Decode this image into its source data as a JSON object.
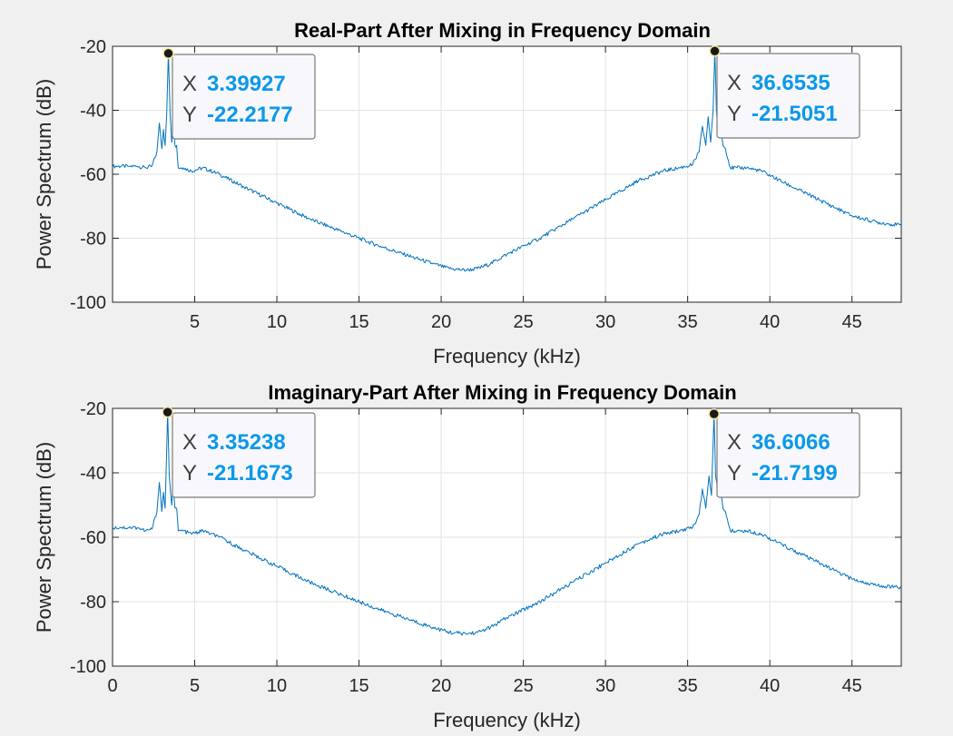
{
  "figure": {
    "background": "#f0f0f0"
  },
  "chart_data": [
    {
      "type": "line",
      "title": "Real-Part After Mixing in Frequency Domain",
      "xlabel": "Frequency (kHz)",
      "ylabel": "Power Spectrum (dB)",
      "xlim": [
        0,
        48
      ],
      "ylim": [
        -100,
        -20
      ],
      "xticks": [
        5,
        10,
        15,
        20,
        25,
        30,
        35,
        40,
        45
      ],
      "xtick_labels": [
        "5",
        "10",
        "15",
        "20",
        "25",
        "30",
        "35",
        "40",
        "45"
      ],
      "yticks": [
        -100,
        -80,
        -60,
        -40,
        -20
      ],
      "ytick_labels": [
        "-100",
        "-80",
        "-60",
        "-40",
        "-20"
      ],
      "grid": true,
      "line_color": "#0072bd",
      "series": [
        {
          "x": [
            0,
            0.5,
            1,
            1.5,
            2,
            2.4,
            2.7,
            2.85,
            3.0,
            3.1,
            3.2,
            3.3,
            3.39927,
            3.5,
            3.6,
            3.7,
            3.8,
            3.9,
            4.0,
            4.3,
            4.8,
            5.5,
            6.5,
            8,
            10,
            12,
            14,
            16,
            18,
            19.5,
            20.5,
            21.5,
            22.2,
            23,
            24,
            26,
            28,
            30,
            32,
            33.5,
            34.5,
            35.3,
            35.7,
            35.9,
            36.1,
            36.25,
            36.4,
            36.55,
            36.6535,
            36.75,
            36.85,
            37.0,
            37.15,
            37.3,
            37.6,
            38,
            38.6,
            39.5,
            41,
            43,
            45,
            46.5,
            48
          ],
          "y": [
            -57.5,
            -57.5,
            -57.5,
            -57.5,
            -58,
            -57.5,
            -53,
            -44,
            -52,
            -46,
            -51,
            -41,
            -22.2177,
            -41,
            -50,
            -44,
            -51,
            -51,
            -58,
            -58,
            -59,
            -58,
            -60,
            -64,
            -69,
            -74,
            -78,
            -82,
            -85.5,
            -88,
            -89.5,
            -90,
            -89.5,
            -88,
            -85,
            -80,
            -74,
            -68,
            -62,
            -59,
            -58,
            -57,
            -53,
            -45,
            -51,
            -42,
            -50,
            -40,
            -21.5051,
            -40,
            -47,
            -45,
            -51,
            -52,
            -58,
            -58,
            -58,
            -59,
            -63,
            -68,
            -73,
            -75,
            -76
          ]
        }
      ],
      "datatips": [
        {
          "x_label": "X",
          "y_label": "Y",
          "x": "3.39927",
          "y": "-22.2177",
          "px": 3.39927,
          "py": -22.2177
        },
        {
          "x_label": "X",
          "y_label": "Y",
          "x": "36.6535",
          "y": "-21.5051",
          "px": 36.6535,
          "py": -21.5051
        }
      ]
    },
    {
      "type": "line",
      "title": "Imaginary-Part After Mixing in Frequency Domain",
      "xlabel": "Frequency (kHz)",
      "ylabel": "Power Spectrum (dB)",
      "xlim": [
        0,
        48
      ],
      "ylim": [
        -100,
        -20
      ],
      "xticks": [
        0,
        5,
        10,
        15,
        20,
        25,
        30,
        35,
        40,
        45
      ],
      "xtick_labels": [
        "0",
        "5",
        "10",
        "15",
        "20",
        "25",
        "30",
        "35",
        "40",
        "45"
      ],
      "yticks": [
        -100,
        -80,
        -60,
        -40,
        -20
      ],
      "ytick_labels": [
        "-100",
        "-80",
        "-60",
        "-40",
        "-20"
      ],
      "grid": true,
      "line_color": "#0072bd",
      "series": [
        {
          "x": [
            0,
            0.5,
            1,
            1.5,
            2,
            2.4,
            2.7,
            2.85,
            3.0,
            3.1,
            3.2,
            3.35238,
            3.45,
            3.6,
            3.7,
            3.8,
            3.9,
            4.0,
            4.3,
            4.8,
            5.5,
            6.5,
            8,
            10,
            12,
            14,
            16,
            18,
            19.5,
            20.5,
            21.5,
            22.2,
            23,
            24,
            26,
            28,
            30,
            32,
            33.5,
            34.5,
            35.3,
            35.7,
            35.9,
            36.1,
            36.3,
            36.45,
            36.6066,
            36.7,
            36.85,
            37.0,
            37.15,
            37.3,
            37.6,
            38,
            38.6,
            39.5,
            41,
            43,
            45,
            46.5,
            48
          ],
          "y": [
            -57,
            -57,
            -57,
            -57,
            -58,
            -57.5,
            -52,
            -43,
            -52,
            -46,
            -51,
            -21.1673,
            -41,
            -50,
            -44,
            -51,
            -51,
            -58,
            -58,
            -59,
            -58,
            -60,
            -64,
            -69,
            -74,
            -78,
            -82,
            -85.5,
            -88,
            -89.5,
            -90,
            -89.5,
            -88,
            -85,
            -80,
            -74,
            -68,
            -62,
            -59,
            -58,
            -57,
            -53,
            -45,
            -51,
            -41,
            -47,
            -21.7199,
            -41,
            -46,
            -45,
            -51,
            -52,
            -58,
            -58,
            -58,
            -59,
            -63,
            -68,
            -73,
            -75,
            -75.5
          ]
        }
      ],
      "datatips": [
        {
          "x_label": "X",
          "y_label": "Y",
          "x": "3.35238",
          "y": "-21.1673",
          "px": 3.35238,
          "py": -21.1673
        },
        {
          "x_label": "X",
          "y_label": "Y",
          "x": "36.6066",
          "y": "-21.7199",
          "px": 36.6066,
          "py": -21.7199
        }
      ]
    }
  ]
}
